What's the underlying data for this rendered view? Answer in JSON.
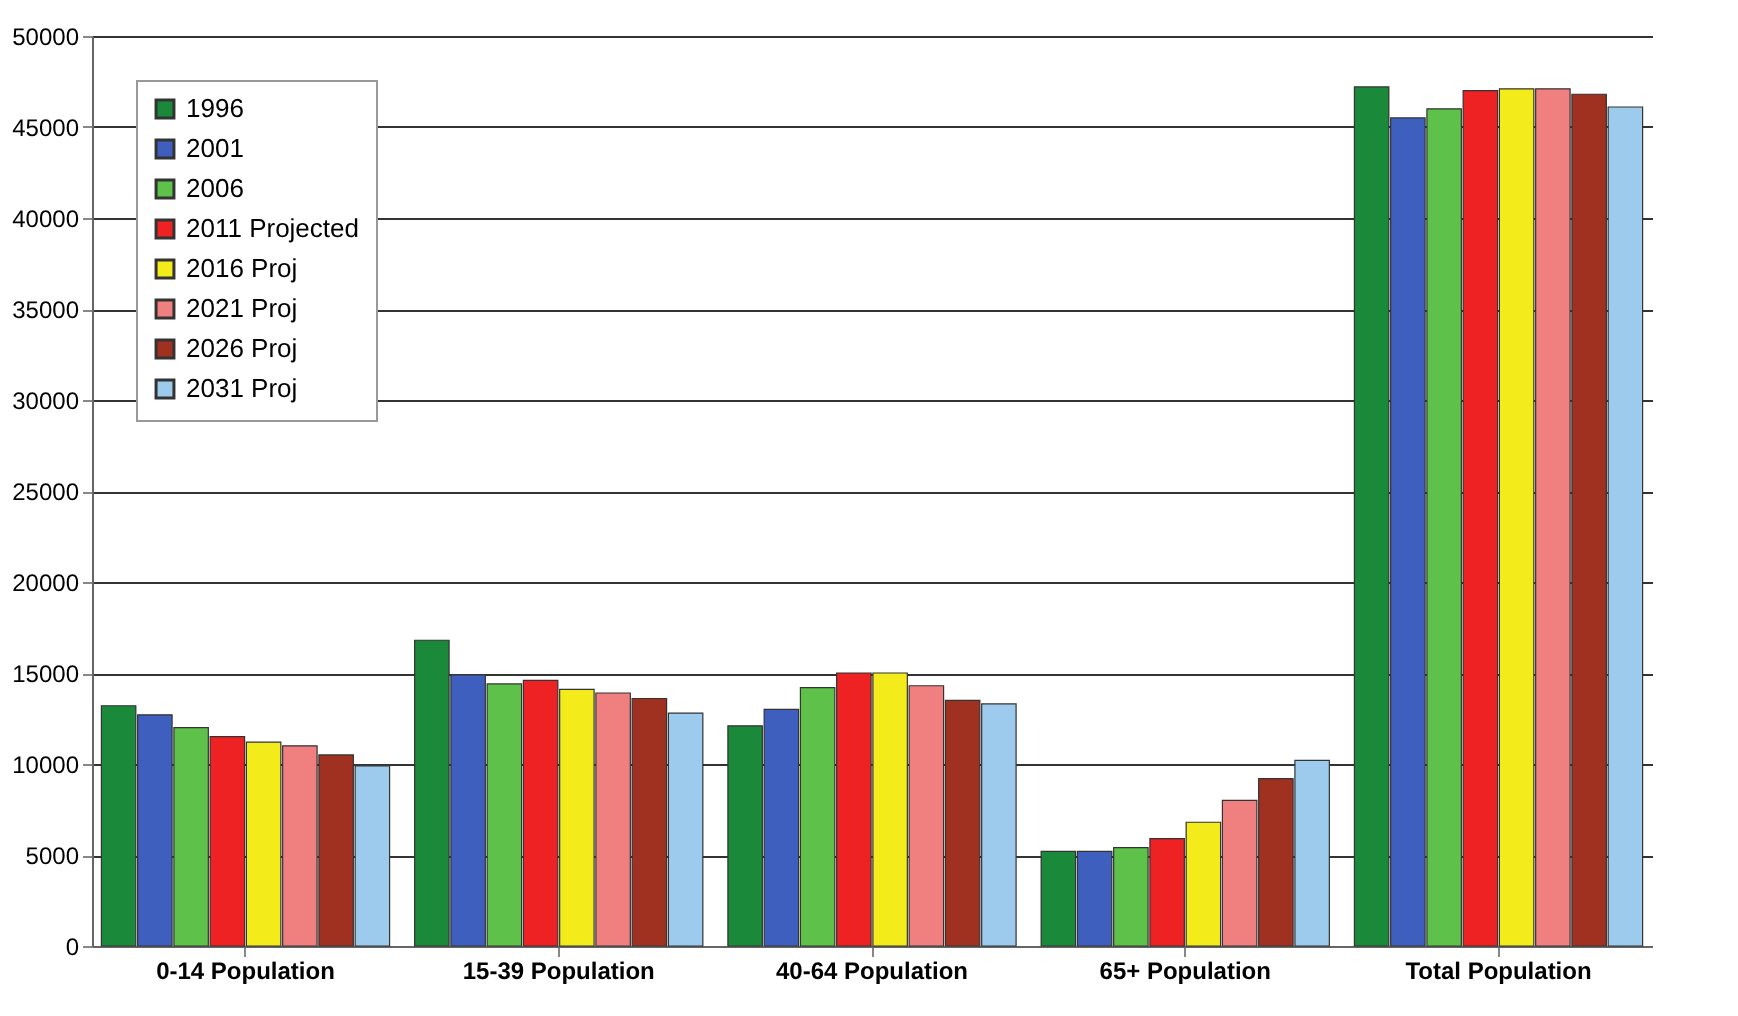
{
  "chart_data": {
    "type": "bar",
    "categories": [
      "0-14 Population",
      "15-39 Population",
      "40-64 Population",
      "65+ Population",
      "Total Population"
    ],
    "series": [
      {
        "name": "1996",
        "color": "#1a8a3a",
        "values": [
          13200,
          16800,
          12100,
          5200,
          47200
        ]
      },
      {
        "name": "2001",
        "color": "#3f5fbf",
        "values": [
          12700,
          14900,
          13000,
          5200,
          45500
        ]
      },
      {
        "name": "2006",
        "color": "#5ec24a",
        "values": [
          12000,
          14400,
          14200,
          5400,
          46000
        ]
      },
      {
        "name": "2011 Projected",
        "color": "#ee2222",
        "values": [
          11500,
          14600,
          15000,
          5900,
          47000
        ]
      },
      {
        "name": "2016 Proj",
        "color": "#f3ec1a",
        "values": [
          11200,
          14100,
          15000,
          6800,
          47100
        ]
      },
      {
        "name": "2021 Proj",
        "color": "#f08080",
        "values": [
          11000,
          13900,
          14300,
          8000,
          47100
        ]
      },
      {
        "name": "2026 Proj",
        "color": "#a03020",
        "values": [
          10500,
          13600,
          13500,
          9200,
          46800
        ]
      },
      {
        "name": "2031 Proj",
        "color": "#9ccbed",
        "values": [
          9900,
          12800,
          13300,
          10200,
          46100
        ]
      }
    ],
    "ylim": [
      0,
      50000
    ],
    "yticks": [
      0,
      5000,
      10000,
      15000,
      20000,
      25000,
      30000,
      35000,
      40000,
      45000,
      50000
    ],
    "grid": "y",
    "legend": "top left"
  }
}
